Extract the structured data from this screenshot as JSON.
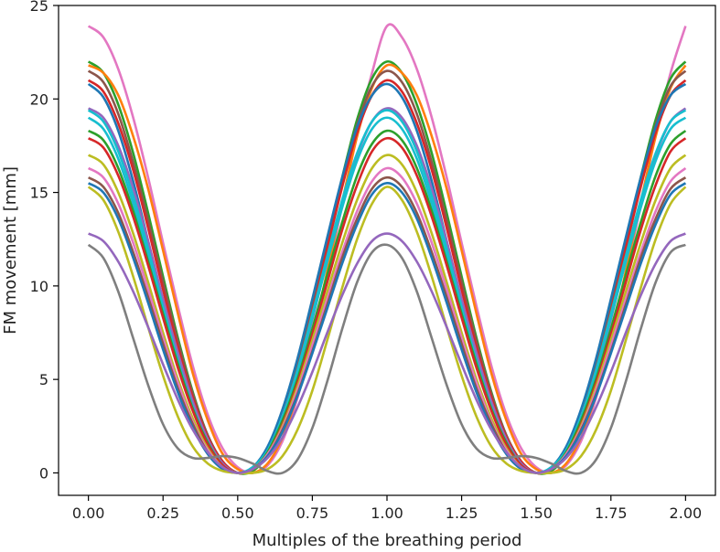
{
  "chart_data": {
    "type": "line",
    "title": "",
    "xlabel": "Multiples of the breathing period",
    "ylabel": "FM movement [mm]",
    "xlim": [
      -0.1,
      2.1
    ],
    "ylim": [
      -1.2,
      25.0
    ],
    "xticks": [
      "0.00",
      "0.25",
      "0.50",
      "0.75",
      "1.00",
      "1.25",
      "1.50",
      "1.75",
      "2.00"
    ],
    "xtick_values": [
      0,
      0.25,
      0.5,
      0.75,
      1.0,
      1.25,
      1.5,
      1.75,
      2.0
    ],
    "yticks": [
      "0",
      "5",
      "10",
      "15",
      "20",
      "25"
    ],
    "ytick_values": [
      0,
      5,
      10,
      15,
      20,
      25
    ],
    "grid": false,
    "legend": "none",
    "x": [
      0,
      0.05,
      0.1,
      0.15,
      0.2,
      0.25,
      0.3,
      0.35,
      0.4,
      0.45,
      0.5,
      0.55,
      0.6,
      0.65,
      0.7,
      0.75,
      0.8,
      0.85,
      0.9,
      0.95,
      1.0,
      1.05,
      1.1,
      1.15,
      1.2,
      1.25,
      1.3,
      1.35,
      1.4,
      1.45,
      1.5,
      1.55,
      1.6,
      1.65,
      1.7,
      1.75,
      1.8,
      1.85,
      1.9,
      1.95,
      2.0
    ],
    "series": [
      {
        "color": "#e377c2",
        "values": [
          23.9,
          23.3,
          21.6,
          19.0,
          15.8,
          12.3,
          8.9,
          5.7,
          3.1,
          1.3,
          0.3,
          0.0,
          0.4,
          1.7,
          4.0,
          7.0,
          10.6,
          14.3,
          18.1,
          21.4,
          23.9,
          23.3,
          21.6,
          19.0,
          15.8,
          12.3,
          8.9,
          5.7,
          3.1,
          1.3,
          0.3,
          0.0,
          0.4,
          1.7,
          4.0,
          7.0,
          10.6,
          14.3,
          18.1,
          21.4,
          23.9
        ]
      },
      {
        "color": "#2ca02c",
        "values": [
          22.0,
          21.4,
          19.7,
          17.1,
          13.9,
          10.5,
          7.2,
          4.3,
          2.0,
          0.6,
          0.0,
          0.1,
          1.0,
          2.9,
          5.5,
          8.8,
          12.3,
          15.8,
          18.9,
          21.1,
          22.0,
          21.4,
          19.7,
          17.1,
          13.9,
          10.5,
          7.2,
          4.3,
          2.0,
          0.6,
          0.0,
          0.1,
          1.0,
          2.9,
          5.5,
          8.8,
          12.3,
          15.8,
          18.9,
          21.1,
          22.0
        ]
      },
      {
        "color": "#ff7f0e",
        "values": [
          21.8,
          21.4,
          20.2,
          18.0,
          15.2,
          11.9,
          8.5,
          5.3,
          2.8,
          1.0,
          0.2,
          0.0,
          0.5,
          1.9,
          4.2,
          7.3,
          10.8,
          14.5,
          18.0,
          20.6,
          21.8,
          21.4,
          20.2,
          18.0,
          15.2,
          11.9,
          8.5,
          5.3,
          2.8,
          1.0,
          0.2,
          0.0,
          0.5,
          1.9,
          4.2,
          7.3,
          10.8,
          14.5,
          18.0,
          20.6,
          21.8
        ]
      },
      {
        "color": "#8c564b",
        "values": [
          21.5,
          20.9,
          19.2,
          16.6,
          13.5,
          10.2,
          7.0,
          4.2,
          2.0,
          0.6,
          0.0,
          0.2,
          1.1,
          3.0,
          5.7,
          8.9,
          12.3,
          15.7,
          18.6,
          20.7,
          21.5,
          20.9,
          19.2,
          16.6,
          13.5,
          10.2,
          7.0,
          4.2,
          2.0,
          0.6,
          0.0,
          0.2,
          1.1,
          3.0,
          5.7,
          8.9,
          12.3,
          15.7,
          18.6,
          20.7,
          21.5
        ]
      },
      {
        "color": "#d62728",
        "values": [
          21.0,
          20.4,
          18.7,
          16.2,
          13.1,
          9.8,
          6.7,
          4.0,
          1.9,
          0.6,
          0.0,
          0.2,
          1.1,
          2.9,
          5.5,
          8.6,
          12.0,
          15.3,
          18.2,
          20.2,
          21.0,
          20.4,
          18.7,
          16.2,
          13.1,
          9.8,
          6.7,
          4.0,
          1.9,
          0.6,
          0.0,
          0.2,
          1.1,
          2.9,
          5.5,
          8.6,
          12.0,
          15.3,
          18.2,
          20.2,
          21.0
        ]
      },
      {
        "color": "#1f77b4",
        "values": [
          20.8,
          20.1,
          18.3,
          15.6,
          12.4,
          9.1,
          6.0,
          3.4,
          1.5,
          0.4,
          0.0,
          0.3,
          1.4,
          3.4,
          6.1,
          9.3,
          12.6,
          15.8,
          18.5,
          20.2,
          20.8,
          20.1,
          18.3,
          15.6,
          12.4,
          9.1,
          6.0,
          3.4,
          1.5,
          0.4,
          0.0,
          0.3,
          1.4,
          3.4,
          6.1,
          9.3,
          12.6,
          15.8,
          18.5,
          20.2,
          20.8
        ]
      },
      {
        "color": "#9467bd",
        "values": [
          19.5,
          19.0,
          17.5,
          15.2,
          12.4,
          9.3,
          6.4,
          3.8,
          1.8,
          0.5,
          0.0,
          0.2,
          1.1,
          2.8,
          5.2,
          8.2,
          11.4,
          14.4,
          17.0,
          18.8,
          19.5,
          19.0,
          17.5,
          15.2,
          12.4,
          9.3,
          6.4,
          3.8,
          1.8,
          0.5,
          0.0,
          0.2,
          1.1,
          2.8,
          5.2,
          8.2,
          11.4,
          14.4,
          17.0,
          18.8,
          19.5
        ]
      },
      {
        "color": "#17becf",
        "values": [
          19.4,
          18.8,
          17.2,
          14.8,
          12.0,
          8.9,
          6.0,
          3.5,
          1.6,
          0.4,
          0.0,
          0.3,
          1.2,
          3.0,
          5.5,
          8.5,
          11.6,
          14.6,
          17.1,
          18.8,
          19.4,
          18.8,
          17.2,
          14.8,
          12.0,
          8.9,
          6.0,
          3.5,
          1.6,
          0.4,
          0.0,
          0.3,
          1.2,
          3.0,
          5.5,
          8.5,
          11.6,
          14.6,
          17.1,
          18.8,
          19.4
        ]
      },
      {
        "color": "#17becf",
        "values": [
          19.0,
          18.4,
          16.8,
          14.4,
          11.6,
          8.6,
          5.8,
          3.4,
          1.5,
          0.4,
          0.0,
          0.3,
          1.2,
          3.0,
          5.4,
          8.3,
          11.3,
          14.2,
          16.7,
          18.4,
          19.0,
          18.4,
          16.8,
          14.4,
          11.6,
          8.6,
          5.8,
          3.4,
          1.5,
          0.4,
          0.0,
          0.3,
          1.2,
          3.0,
          5.4,
          8.3,
          11.3,
          14.2,
          16.7,
          18.4,
          19.0
        ]
      },
      {
        "color": "#2ca02c",
        "values": [
          18.3,
          17.8,
          16.3,
          14.0,
          11.3,
          8.5,
          5.8,
          3.4,
          1.6,
          0.4,
          0.0,
          0.2,
          1.1,
          2.8,
          5.0,
          7.7,
          10.6,
          13.4,
          15.9,
          17.6,
          18.3,
          17.8,
          16.3,
          14.0,
          11.3,
          8.5,
          5.8,
          3.4,
          1.6,
          0.4,
          0.0,
          0.2,
          1.1,
          2.8,
          5.0,
          7.7,
          10.6,
          13.4,
          15.9,
          17.6,
          18.3
        ]
      },
      {
        "color": "#d62728",
        "values": [
          17.9,
          17.4,
          15.9,
          13.7,
          11.1,
          8.3,
          5.6,
          3.3,
          1.5,
          0.4,
          0.0,
          0.2,
          1.0,
          2.6,
          4.8,
          7.4,
          10.2,
          13.0,
          15.4,
          17.2,
          17.9,
          17.4,
          15.9,
          13.7,
          11.1,
          8.3,
          5.6,
          3.3,
          1.5,
          0.4,
          0.0,
          0.2,
          1.0,
          2.6,
          4.8,
          7.4,
          10.2,
          13.0,
          15.4,
          17.2,
          17.9
        ]
      },
      {
        "color": "#bcbd22",
        "values": [
          17.0,
          16.5,
          15.0,
          12.8,
          10.2,
          7.5,
          5.0,
          2.9,
          1.3,
          0.3,
          0.0,
          0.2,
          1.0,
          2.5,
          4.6,
          7.1,
          9.7,
          12.3,
          14.6,
          16.3,
          17.0,
          16.5,
          15.0,
          12.8,
          10.2,
          7.5,
          5.0,
          2.9,
          1.3,
          0.3,
          0.0,
          0.2,
          1.0,
          2.5,
          4.6,
          7.1,
          9.7,
          12.3,
          14.6,
          16.3,
          17.0
        ]
      },
      {
        "color": "#e377c2",
        "values": [
          16.3,
          15.8,
          14.4,
          12.3,
          9.8,
          7.2,
          4.8,
          2.7,
          1.2,
          0.3,
          0.0,
          0.2,
          1.0,
          2.4,
          4.4,
          6.8,
          9.3,
          11.8,
          14.0,
          15.6,
          16.3,
          15.8,
          14.4,
          12.3,
          9.8,
          7.2,
          4.8,
          2.7,
          1.2,
          0.3,
          0.0,
          0.2,
          1.0,
          2.4,
          4.4,
          6.8,
          9.3,
          11.8,
          14.0,
          15.6,
          16.3
        ]
      },
      {
        "color": "#8c564b",
        "values": [
          15.8,
          15.3,
          13.9,
          11.8,
          9.4,
          6.9,
          4.5,
          2.6,
          1.1,
          0.3,
          0.0,
          0.2,
          0.9,
          2.3,
          4.2,
          6.5,
          9.0,
          11.5,
          13.6,
          15.2,
          15.8,
          15.3,
          13.9,
          11.8,
          9.4,
          6.9,
          4.5,
          2.6,
          1.1,
          0.3,
          0.0,
          0.2,
          0.9,
          2.3,
          4.2,
          6.5,
          9.0,
          11.5,
          13.6,
          15.2,
          15.8
        ]
      },
      {
        "color": "#1f77b4",
        "values": [
          15.5,
          15.0,
          13.6,
          11.5,
          9.1,
          6.6,
          4.3,
          2.4,
          1.0,
          0.2,
          0.0,
          0.2,
          0.9,
          2.2,
          4.1,
          6.4,
          8.8,
          11.2,
          13.3,
          14.9,
          15.5,
          15.0,
          13.6,
          11.5,
          9.1,
          6.6,
          4.3,
          2.4,
          1.0,
          0.2,
          0.0,
          0.2,
          0.9,
          2.2,
          4.1,
          6.4,
          8.8,
          11.2,
          13.3,
          14.9,
          15.5
        ]
      },
      {
        "color": "#bcbd22",
        "values": [
          15.3,
          14.6,
          12.9,
          10.5,
          7.8,
          5.2,
          3.0,
          1.4,
          0.5,
          0.1,
          0.0,
          0.0,
          0.2,
          0.9,
          2.3,
          4.4,
          7.1,
          9.9,
          12.5,
          14.4,
          15.3,
          14.6,
          12.9,
          10.5,
          7.8,
          5.2,
          3.0,
          1.4,
          0.5,
          0.1,
          0.0,
          0.0,
          0.2,
          0.9,
          2.3,
          4.4,
          7.1,
          9.9,
          12.5,
          14.4,
          15.3
        ]
      },
      {
        "color": "#9467bd",
        "values": [
          12.8,
          12.4,
          11.3,
          9.7,
          7.8,
          5.8,
          3.9,
          2.3,
          1.1,
          0.3,
          0.0,
          0.2,
          0.8,
          1.9,
          3.5,
          5.4,
          7.5,
          9.5,
          11.2,
          12.4,
          12.8,
          12.4,
          11.3,
          9.7,
          7.8,
          5.8,
          3.9,
          2.3,
          1.1,
          0.3,
          0.0,
          0.2,
          0.8,
          1.9,
          3.5,
          5.4,
          7.5,
          9.5,
          11.2,
          12.4,
          12.8
        ]
      },
      {
        "color": "#7f7f7f",
        "values": [
          12.2,
          11.5,
          9.7,
          7.2,
          4.7,
          2.6,
          1.3,
          0.8,
          0.8,
          0.9,
          0.8,
          0.5,
          0.1,
          0.0,
          0.7,
          2.4,
          4.9,
          7.7,
          10.2,
          11.8,
          12.2,
          11.5,
          9.7,
          7.2,
          4.7,
          2.6,
          1.3,
          0.8,
          0.8,
          0.9,
          0.8,
          0.5,
          0.1,
          0.0,
          0.7,
          2.4,
          4.9,
          7.7,
          10.2,
          11.8,
          12.2
        ]
      }
    ]
  }
}
